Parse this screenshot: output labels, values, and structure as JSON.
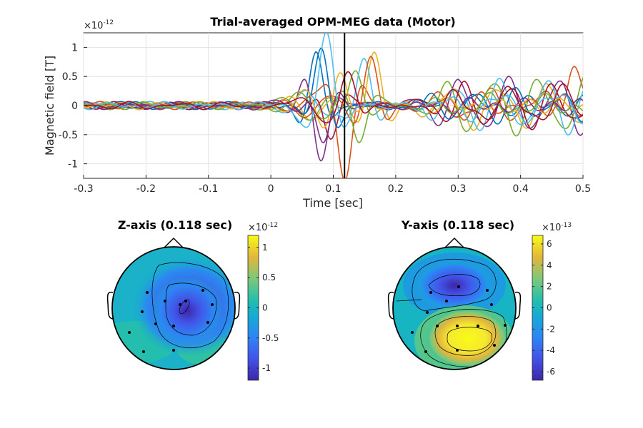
{
  "chart_data": [
    {
      "type": "line",
      "title": "Trial-averaged OPM-MEG data (Motor)",
      "xlabel": "Time [sec]",
      "ylabel": "Magnetic field [T]",
      "y_exponent": "-12",
      "xlim": [
        -0.3,
        0.5
      ],
      "ylim": [
        -1.25,
        1.25
      ],
      "xticks": [
        -0.3,
        -0.2,
        -0.1,
        0,
        0.1,
        0.2,
        0.3,
        0.4,
        0.5
      ],
      "xtick_labels": [
        "-0.3",
        "-0.2",
        "-0.1",
        "0",
        "0.1",
        "0.2",
        "0.3",
        "0.4",
        "0.5"
      ],
      "yticks": [
        1,
        0.5,
        0,
        -0.5,
        -1
      ],
      "ytick_labels": [
        "1",
        "0.5",
        "0",
        "-0.5",
        "-1"
      ],
      "grid": true,
      "marker_line_x": 0.118,
      "series_count": 14,
      "series_colors": [
        "#0072BD",
        "#D95319",
        "#EDB120",
        "#7E2F8E",
        "#77AC30",
        "#4DBEEE",
        "#A2142F",
        "#0072BD",
        "#D95319",
        "#EDB120",
        "#7E2F8E",
        "#77AC30",
        "#4DBEEE",
        "#A2142F"
      ],
      "series_peak_t": [
        0.072,
        0.119,
        0.165,
        0.078,
        0.135,
        0.15,
        0.095,
        0.082,
        0.16,
        0.11,
        0.085,
        0.14,
        0.09,
        0.125
      ],
      "series_peak_amp": [
        1.15,
        -1.2,
        0.95,
        -1.05,
        0.7,
        0.8,
        -0.75,
        1.05,
        0.85,
        0.6,
        -0.9,
        -0.65,
        1.1,
        0.55
      ]
    },
    {
      "type": "heatmap",
      "title": "Z-axis (0.118 sec)",
      "colorbar_exponent": "-12",
      "clim": [
        -1.2,
        1.2
      ],
      "colorbar_ticks": [
        1,
        0.5,
        0,
        -0.5,
        -1
      ],
      "colorbar_tick_labels": [
        "1",
        "0.5",
        "0",
        "-0.5",
        "-1"
      ],
      "colormap": "parula"
    },
    {
      "type": "heatmap",
      "title": "Y-axis (0.118 sec)",
      "colorbar_exponent": "-13",
      "clim": [
        -6.8,
        6.8
      ],
      "colorbar_ticks": [
        6,
        4,
        2,
        0,
        -2,
        -4,
        -6
      ],
      "colorbar_tick_labels": [
        "6",
        "4",
        "2",
        "0",
        "-2",
        "-4",
        "-6"
      ],
      "colormap": "parula"
    }
  ],
  "exponent_base": "×10"
}
